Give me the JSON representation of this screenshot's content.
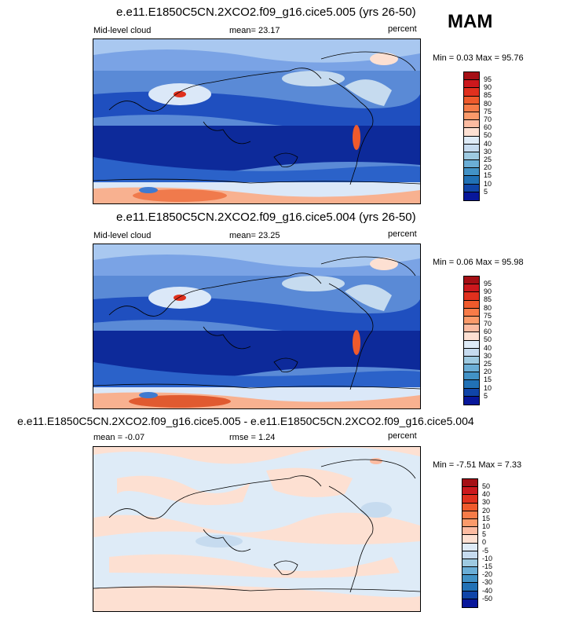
{
  "season": "MAM",
  "panel1": {
    "title": "e.e11.E1850C5CN.2XCO2.f09_g16.cice5.005 (yrs 26-50)",
    "left": "Mid-level cloud",
    "center": "mean=  23.17",
    "right": "percent",
    "minmax": "Min =   0.03 Max =  95.76"
  },
  "panel2": {
    "title": "e.e11.E1850C5CN.2XCO2.f09_g16.cice5.004 (yrs 26-50)",
    "left": "Mid-level cloud",
    "center": "mean=  23.25",
    "right": "percent",
    "minmax": "Min =   0.06 Max =  95.98"
  },
  "panel3": {
    "title": "e.e11.E1850C5CN.2XCO2.f09_g16.cice5.005 - e.e11.E1850C5CN.2XCO2.f09_g16.cice5.004",
    "left": "mean =  -0.07",
    "center": "rmse =   1.24",
    "right": "percent",
    "minmax": "Min =  -7.51 Max =   7.33"
  },
  "colorbar_abs": {
    "labels": [
      "95",
      "90",
      "85",
      "80",
      "75",
      "70",
      "60",
      "50",
      "40",
      "30",
      "25",
      "20",
      "15",
      "10",
      "5"
    ],
    "colors": [
      "#a50f15",
      "#cb181d",
      "#e0301e",
      "#ef5a2c",
      "#f77b48",
      "#fb9a6a",
      "#fcbba1",
      "#fde0d2",
      "#deebf7",
      "#c6dbef",
      "#9ecae1",
      "#6baed6",
      "#4292c6",
      "#2171b5",
      "#1045a8",
      "#08179a"
    ]
  },
  "colorbar_diff": {
    "labels": [
      "50",
      "40",
      "30",
      "20",
      "15",
      "10",
      "5",
      "0",
      "-5",
      "-10",
      "-15",
      "-20",
      "-30",
      "-40",
      "-50"
    ],
    "colors": [
      "#a50f15",
      "#cb181d",
      "#e0301e",
      "#ef5a2c",
      "#f77b48",
      "#fb9a6a",
      "#fcbba1",
      "#fde0d2",
      "#deebf7",
      "#c6dbef",
      "#9ecae1",
      "#6baed6",
      "#4292c6",
      "#2171b5",
      "#1045a8",
      "#08179a"
    ]
  }
}
